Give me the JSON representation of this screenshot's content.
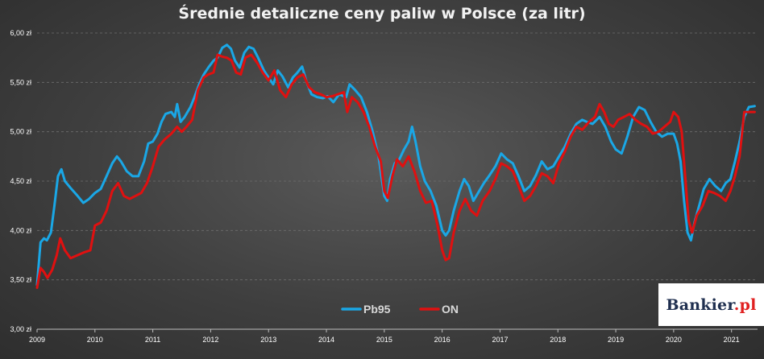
{
  "chart_data": {
    "type": "line",
    "title": "Średnie detaliczne ceny paliw w Polsce (za litr)",
    "xlabel": "",
    "ylabel": "",
    "ylim": [
      3.0,
      6.0
    ],
    "xlim": [
      2009.0,
      2021.45
    ],
    "grid": true,
    "legend_position": "bottom-center",
    "x_ticks": [
      "2009",
      "2010",
      "2011",
      "2012",
      "2013",
      "2014",
      "2015",
      "2016",
      "2017",
      "2018",
      "2019",
      "2020",
      "2021"
    ],
    "y_ticks": [
      "3,00 zł",
      "3,50 zł",
      "4,00 zł",
      "4,50 zł",
      "5,00 zł",
      "5,50 zł",
      "6,00 zł"
    ],
    "y_tick_values": [
      3.0,
      3.5,
      4.0,
      4.5,
      5.0,
      5.5,
      6.0
    ],
    "series": [
      {
        "name": "Pb95",
        "color": "#1aa7e6",
        "points": [
          [
            2009.0,
            3.45
          ],
          [
            2009.06,
            3.88
          ],
          [
            2009.12,
            3.92
          ],
          [
            2009.17,
            3.9
          ],
          [
            2009.24,
            3.98
          ],
          [
            2009.3,
            4.25
          ],
          [
            2009.36,
            4.55
          ],
          [
            2009.42,
            4.62
          ],
          [
            2009.48,
            4.5
          ],
          [
            2009.58,
            4.43
          ],
          [
            2009.7,
            4.35
          ],
          [
            2009.8,
            4.28
          ],
          [
            2009.9,
            4.32
          ],
          [
            2010.0,
            4.38
          ],
          [
            2010.1,
            4.42
          ],
          [
            2010.2,
            4.55
          ],
          [
            2010.3,
            4.68
          ],
          [
            2010.38,
            4.75
          ],
          [
            2010.45,
            4.7
          ],
          [
            2010.55,
            4.6
          ],
          [
            2010.65,
            4.55
          ],
          [
            2010.75,
            4.55
          ],
          [
            2010.85,
            4.7
          ],
          [
            2010.92,
            4.88
          ],
          [
            2011.0,
            4.9
          ],
          [
            2011.08,
            4.98
          ],
          [
            2011.15,
            5.1
          ],
          [
            2011.22,
            5.18
          ],
          [
            2011.32,
            5.2
          ],
          [
            2011.38,
            5.15
          ],
          [
            2011.42,
            5.28
          ],
          [
            2011.48,
            5.1
          ],
          [
            2011.55,
            5.15
          ],
          [
            2011.65,
            5.25
          ],
          [
            2011.72,
            5.35
          ],
          [
            2011.8,
            5.48
          ],
          [
            2011.88,
            5.58
          ],
          [
            2011.96,
            5.65
          ],
          [
            2012.05,
            5.72
          ],
          [
            2012.12,
            5.75
          ],
          [
            2012.2,
            5.85
          ],
          [
            2012.28,
            5.88
          ],
          [
            2012.35,
            5.84
          ],
          [
            2012.42,
            5.72
          ],
          [
            2012.5,
            5.65
          ],
          [
            2012.58,
            5.8
          ],
          [
            2012.66,
            5.86
          ],
          [
            2012.74,
            5.84
          ],
          [
            2012.82,
            5.75
          ],
          [
            2012.92,
            5.62
          ],
          [
            2013.0,
            5.55
          ],
          [
            2013.08,
            5.48
          ],
          [
            2013.16,
            5.62
          ],
          [
            2013.24,
            5.56
          ],
          [
            2013.34,
            5.45
          ],
          [
            2013.42,
            5.55
          ],
          [
            2013.5,
            5.6
          ],
          [
            2013.58,
            5.66
          ],
          [
            2013.66,
            5.5
          ],
          [
            2013.74,
            5.38
          ],
          [
            2013.84,
            5.35
          ],
          [
            2013.94,
            5.34
          ],
          [
            2014.02,
            5.36
          ],
          [
            2014.12,
            5.3
          ],
          [
            2014.22,
            5.38
          ],
          [
            2014.34,
            5.35
          ],
          [
            2014.4,
            5.48
          ],
          [
            2014.5,
            5.42
          ],
          [
            2014.6,
            5.35
          ],
          [
            2014.7,
            5.2
          ],
          [
            2014.8,
            5.0
          ],
          [
            2014.9,
            4.75
          ],
          [
            2015.0,
            4.35
          ],
          [
            2015.05,
            4.3
          ],
          [
            2015.1,
            4.52
          ],
          [
            2015.18,
            4.68
          ],
          [
            2015.26,
            4.72
          ],
          [
            2015.34,
            4.82
          ],
          [
            2015.42,
            4.9
          ],
          [
            2015.48,
            5.05
          ],
          [
            2015.54,
            4.9
          ],
          [
            2015.62,
            4.65
          ],
          [
            2015.7,
            4.5
          ],
          [
            2015.8,
            4.4
          ],
          [
            2015.9,
            4.25
          ],
          [
            2016.0,
            4.0
          ],
          [
            2016.06,
            3.95
          ],
          [
            2016.12,
            4.0
          ],
          [
            2016.2,
            4.2
          ],
          [
            2016.3,
            4.4
          ],
          [
            2016.38,
            4.52
          ],
          [
            2016.46,
            4.45
          ],
          [
            2016.54,
            4.3
          ],
          [
            2016.62,
            4.38
          ],
          [
            2016.72,
            4.48
          ],
          [
            2016.82,
            4.56
          ],
          [
            2016.92,
            4.65
          ],
          [
            2017.02,
            4.78
          ],
          [
            2017.12,
            4.72
          ],
          [
            2017.22,
            4.68
          ],
          [
            2017.32,
            4.55
          ],
          [
            2017.42,
            4.4
          ],
          [
            2017.52,
            4.45
          ],
          [
            2017.62,
            4.56
          ],
          [
            2017.72,
            4.7
          ],
          [
            2017.82,
            4.62
          ],
          [
            2017.92,
            4.65
          ],
          [
            2018.02,
            4.75
          ],
          [
            2018.12,
            4.85
          ],
          [
            2018.22,
            4.98
          ],
          [
            2018.32,
            5.08
          ],
          [
            2018.42,
            5.12
          ],
          [
            2018.5,
            5.1
          ],
          [
            2018.6,
            5.08
          ],
          [
            2018.72,
            5.15
          ],
          [
            2018.82,
            5.05
          ],
          [
            2018.92,
            4.9
          ],
          [
            2019.0,
            4.82
          ],
          [
            2019.1,
            4.78
          ],
          [
            2019.2,
            4.95
          ],
          [
            2019.3,
            5.15
          ],
          [
            2019.4,
            5.25
          ],
          [
            2019.5,
            5.22
          ],
          [
            2019.6,
            5.1
          ],
          [
            2019.7,
            5.0
          ],
          [
            2019.8,
            4.95
          ],
          [
            2019.9,
            4.98
          ],
          [
            2020.0,
            4.98
          ],
          [
            2020.06,
            4.88
          ],
          [
            2020.12,
            4.7
          ],
          [
            2020.18,
            4.3
          ],
          [
            2020.24,
            3.98
          ],
          [
            2020.3,
            3.9
          ],
          [
            2020.36,
            4.08
          ],
          [
            2020.44,
            4.25
          ],
          [
            2020.52,
            4.42
          ],
          [
            2020.62,
            4.52
          ],
          [
            2020.72,
            4.45
          ],
          [
            2020.82,
            4.4
          ],
          [
            2020.9,
            4.48
          ],
          [
            2020.98,
            4.52
          ],
          [
            2021.06,
            4.7
          ],
          [
            2021.14,
            4.9
          ],
          [
            2021.22,
            5.15
          ],
          [
            2021.3,
            5.25
          ],
          [
            2021.4,
            5.26
          ]
        ]
      },
      {
        "name": "ON",
        "color": "#e01010",
        "points": [
          [
            2009.0,
            3.42
          ],
          [
            2009.06,
            3.62
          ],
          [
            2009.12,
            3.58
          ],
          [
            2009.18,
            3.52
          ],
          [
            2009.26,
            3.6
          ],
          [
            2009.34,
            3.75
          ],
          [
            2009.4,
            3.92
          ],
          [
            2009.48,
            3.8
          ],
          [
            2009.58,
            3.72
          ],
          [
            2009.7,
            3.75
          ],
          [
            2009.82,
            3.78
          ],
          [
            2009.92,
            3.8
          ],
          [
            2010.0,
            4.05
          ],
          [
            2010.1,
            4.08
          ],
          [
            2010.2,
            4.2
          ],
          [
            2010.3,
            4.4
          ],
          [
            2010.4,
            4.48
          ],
          [
            2010.5,
            4.35
          ],
          [
            2010.6,
            4.32
          ],
          [
            2010.7,
            4.35
          ],
          [
            2010.8,
            4.38
          ],
          [
            2010.9,
            4.48
          ],
          [
            2011.0,
            4.65
          ],
          [
            2011.1,
            4.85
          ],
          [
            2011.2,
            4.92
          ],
          [
            2011.32,
            4.98
          ],
          [
            2011.42,
            5.05
          ],
          [
            2011.5,
            5.0
          ],
          [
            2011.58,
            5.05
          ],
          [
            2011.68,
            5.12
          ],
          [
            2011.78,
            5.42
          ],
          [
            2011.88,
            5.55
          ],
          [
            2011.96,
            5.58
          ],
          [
            2012.05,
            5.6
          ],
          [
            2012.12,
            5.78
          ],
          [
            2012.2,
            5.76
          ],
          [
            2012.28,
            5.75
          ],
          [
            2012.36,
            5.72
          ],
          [
            2012.44,
            5.6
          ],
          [
            2012.52,
            5.58
          ],
          [
            2012.6,
            5.75
          ],
          [
            2012.7,
            5.78
          ],
          [
            2012.8,
            5.7
          ],
          [
            2012.9,
            5.6
          ],
          [
            2013.0,
            5.52
          ],
          [
            2013.1,
            5.62
          ],
          [
            2013.2,
            5.42
          ],
          [
            2013.3,
            5.35
          ],
          [
            2013.4,
            5.48
          ],
          [
            2013.5,
            5.55
          ],
          [
            2013.6,
            5.58
          ],
          [
            2013.7,
            5.45
          ],
          [
            2013.8,
            5.4
          ],
          [
            2013.9,
            5.38
          ],
          [
            2014.0,
            5.35
          ],
          [
            2014.1,
            5.36
          ],
          [
            2014.2,
            5.38
          ],
          [
            2014.3,
            5.4
          ],
          [
            2014.36,
            5.2
          ],
          [
            2014.44,
            5.35
          ],
          [
            2014.54,
            5.3
          ],
          [
            2014.64,
            5.2
          ],
          [
            2014.74,
            5.05
          ],
          [
            2014.84,
            4.85
          ],
          [
            2014.94,
            4.7
          ],
          [
            2015.0,
            4.4
          ],
          [
            2015.06,
            4.33
          ],
          [
            2015.14,
            4.55
          ],
          [
            2015.22,
            4.72
          ],
          [
            2015.32,
            4.65
          ],
          [
            2015.42,
            4.75
          ],
          [
            2015.52,
            4.6
          ],
          [
            2015.62,
            4.4
          ],
          [
            2015.72,
            4.28
          ],
          [
            2015.82,
            4.3
          ],
          [
            2015.92,
            4.05
          ],
          [
            2016.0,
            3.8
          ],
          [
            2016.06,
            3.7
          ],
          [
            2016.12,
            3.72
          ],
          [
            2016.2,
            3.98
          ],
          [
            2016.3,
            4.2
          ],
          [
            2016.4,
            4.32
          ],
          [
            2016.5,
            4.2
          ],
          [
            2016.6,
            4.15
          ],
          [
            2016.7,
            4.3
          ],
          [
            2016.82,
            4.4
          ],
          [
            2016.92,
            4.52
          ],
          [
            2017.02,
            4.68
          ],
          [
            2017.12,
            4.65
          ],
          [
            2017.22,
            4.6
          ],
          [
            2017.32,
            4.45
          ],
          [
            2017.42,
            4.3
          ],
          [
            2017.52,
            4.35
          ],
          [
            2017.62,
            4.45
          ],
          [
            2017.72,
            4.58
          ],
          [
            2017.82,
            4.55
          ],
          [
            2017.92,
            4.48
          ],
          [
            2018.02,
            4.68
          ],
          [
            2018.12,
            4.8
          ],
          [
            2018.22,
            4.95
          ],
          [
            2018.32,
            5.05
          ],
          [
            2018.42,
            5.02
          ],
          [
            2018.54,
            5.1
          ],
          [
            2018.64,
            5.15
          ],
          [
            2018.72,
            5.28
          ],
          [
            2018.8,
            5.2
          ],
          [
            2018.88,
            5.08
          ],
          [
            2018.96,
            5.05
          ],
          [
            2019.04,
            5.12
          ],
          [
            2019.14,
            5.15
          ],
          [
            2019.24,
            5.18
          ],
          [
            2019.34,
            5.12
          ],
          [
            2019.44,
            5.08
          ],
          [
            2019.54,
            5.05
          ],
          [
            2019.64,
            4.98
          ],
          [
            2019.74,
            5.0
          ],
          [
            2019.84,
            5.05
          ],
          [
            2019.94,
            5.1
          ],
          [
            2020.0,
            5.2
          ],
          [
            2020.08,
            5.15
          ],
          [
            2020.14,
            5.0
          ],
          [
            2020.2,
            4.55
          ],
          [
            2020.26,
            4.1
          ],
          [
            2020.32,
            3.98
          ],
          [
            2020.4,
            4.15
          ],
          [
            2020.5,
            4.25
          ],
          [
            2020.6,
            4.4
          ],
          [
            2020.7,
            4.38
          ],
          [
            2020.8,
            4.35
          ],
          [
            2020.9,
            4.3
          ],
          [
            2020.98,
            4.4
          ],
          [
            2021.06,
            4.55
          ],
          [
            2021.14,
            4.75
          ],
          [
            2021.22,
            5.2
          ],
          [
            2021.3,
            5.2
          ],
          [
            2021.4,
            5.2
          ]
        ]
      }
    ]
  },
  "logo": {
    "brand": "Bankier",
    "dot_tld": ".pl"
  }
}
